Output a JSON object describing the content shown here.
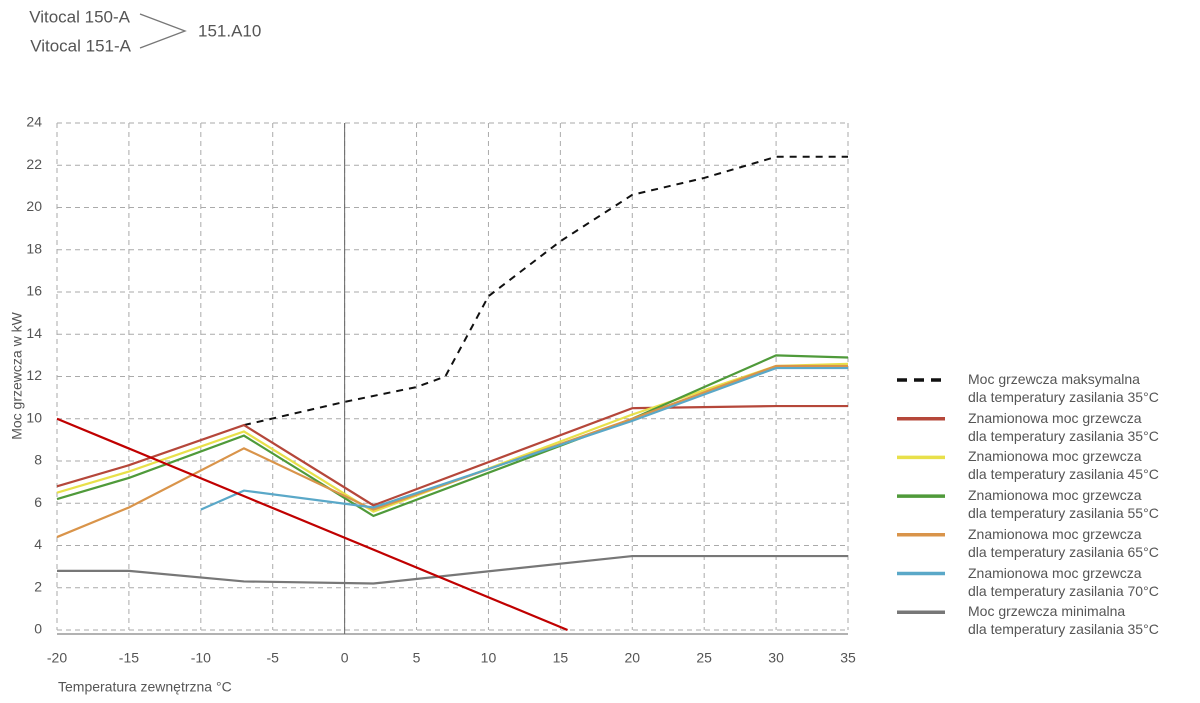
{
  "header": {
    "models": [
      "Vitocal 150-A",
      "Vitocal 151-A"
    ],
    "variant": "151.A10"
  },
  "chart_data": {
    "type": "line",
    "x_label": "Temperatura zewnętrzna °C",
    "y_label": "Moc grzewcza w kW",
    "xlim": [
      -20,
      35
    ],
    "xticks": [
      -20,
      -15,
      -10,
      -5,
      0,
      5,
      10,
      15,
      20,
      25,
      30,
      35
    ],
    "ylim": [
      0,
      24
    ],
    "yticks": [
      0,
      2,
      4,
      6,
      8,
      10,
      12,
      14,
      16,
      18,
      20,
      22,
      24
    ],
    "grid": true,
    "series": [
      {
        "name": "Moc grzewcza maksymalna\ndla temperatury zasilania 35°C",
        "color": "#111111",
        "dashed": true,
        "x": [
          -7,
          0,
          5,
          7,
          10,
          15,
          20,
          25,
          30,
          35
        ],
        "values": [
          9.7,
          10.8,
          11.5,
          12.0,
          15.8,
          18.4,
          20.6,
          21.4,
          22.4,
          22.4
        ]
      },
      {
        "name": "Znamionowa moc grzewcza\ndla temperatury zasilania 35°C",
        "color": "#b5473a",
        "x": [
          -20,
          -15,
          -7,
          2,
          20,
          30,
          35
        ],
        "values": [
          6.8,
          7.8,
          9.7,
          5.9,
          10.5,
          10.6,
          10.6
        ]
      },
      {
        "name": "Znamionowa moc grzewcza\ndla temperatury zasilania 45°C",
        "color": "#e8e04a",
        "x": [
          -20,
          -15,
          -7,
          2,
          20,
          30,
          35
        ],
        "values": [
          6.5,
          7.5,
          9.4,
          5.6,
          10.2,
          12.5,
          12.6
        ]
      },
      {
        "name": "Znamionowa moc grzewcza\ndla temperatury zasilania 55°C",
        "color": "#4f9a3a",
        "x": [
          -20,
          -15,
          -7,
          2,
          20,
          30,
          35
        ],
        "values": [
          6.2,
          7.2,
          9.2,
          5.4,
          10.0,
          13.0,
          12.9
        ]
      },
      {
        "name": "Znamionowa moc grzewcza\ndla temperatury zasilania 65°C",
        "color": "#d9944a",
        "x": [
          -20,
          -15,
          -7,
          2,
          20,
          30,
          35
        ],
        "values": [
          4.4,
          5.8,
          8.6,
          5.7,
          10.0,
          12.5,
          12.5
        ]
      },
      {
        "name": "Znamionowa moc grzewcza\ndla temperatury zasilania 70°C",
        "color": "#5aa8c8",
        "x": [
          -10,
          -7,
          2,
          20,
          30,
          35
        ],
        "values": [
          5.7,
          6.6,
          5.8,
          9.9,
          12.4,
          12.4
        ]
      },
      {
        "name": "Moc grzewcza minimalna\ndla temperatury zasilania 35°C",
        "color": "#777777",
        "x": [
          -20,
          -15,
          -7,
          2,
          20,
          30,
          35
        ],
        "values": [
          2.8,
          2.8,
          2.3,
          2.2,
          3.5,
          3.5,
          3.5
        ]
      },
      {
        "color": "#c00000",
        "x": [
          -20,
          15.5
        ],
        "values": [
          10,
          0
        ]
      }
    ]
  }
}
